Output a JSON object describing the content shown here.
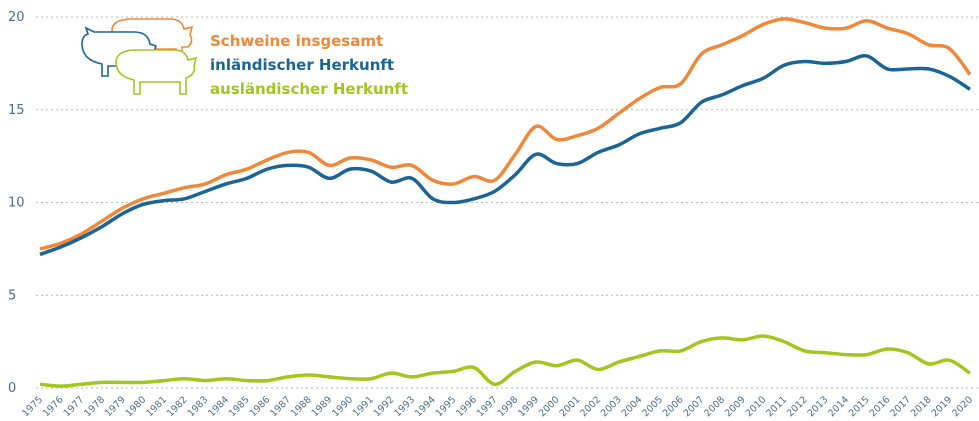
{
  "chart_data": {
    "type": "line",
    "categories": [
      "1975",
      "1976",
      "1977",
      "1978",
      "1979",
      "1980",
      "1981",
      "1982",
      "1983",
      "1984",
      "1985",
      "1986",
      "1987",
      "1988",
      "1989",
      "1990",
      "1991",
      "1992",
      "1993",
      "1994",
      "1995",
      "1996",
      "1997",
      "1998",
      "1999",
      "2000",
      "2001",
      "2002",
      "2003",
      "2004",
      "2005",
      "2006",
      "2007",
      "2008",
      "2009",
      "2010",
      "2011",
      "2012",
      "2013",
      "2014",
      "2015",
      "2016",
      "2017",
      "2018",
      "2019",
      "2020"
    ],
    "series": [
      {
        "name": "Schweine insgesamt",
        "color": "#f0883a",
        "values": [
          7.5,
          7.8,
          8.3,
          9.0,
          9.7,
          10.2,
          10.5,
          10.8,
          11.0,
          11.5,
          11.8,
          12.3,
          12.7,
          12.7,
          12.0,
          12.4,
          12.3,
          11.9,
          12.0,
          11.2,
          11.0,
          11.4,
          11.2,
          12.6,
          14.1,
          13.4,
          13.6,
          14.0,
          14.8,
          15.6,
          16.2,
          16.4,
          18.0,
          18.5,
          19.0,
          19.6,
          19.9,
          19.7,
          19.4,
          19.4,
          19.8,
          19.4,
          19.1,
          18.5,
          18.3,
          16.9
        ]
      },
      {
        "name": "inländischer Herkunft",
        "color": "#1a6496",
        "values": [
          7.2,
          7.6,
          8.1,
          8.7,
          9.4,
          9.9,
          10.1,
          10.2,
          10.6,
          11.0,
          11.3,
          11.8,
          12.0,
          11.9,
          11.3,
          11.8,
          11.7,
          11.1,
          11.3,
          10.2,
          10.0,
          10.2,
          10.6,
          11.5,
          12.6,
          12.1,
          12.1,
          12.7,
          13.1,
          13.7,
          14.0,
          14.3,
          15.4,
          15.8,
          16.3,
          16.7,
          17.4,
          17.6,
          17.5,
          17.6,
          17.9,
          17.2,
          17.2,
          17.2,
          16.8,
          16.1
        ]
      },
      {
        "name": "ausländischer Herkunft",
        "color": "#a3c520",
        "values": [
          0.2,
          0.1,
          0.2,
          0.3,
          0.3,
          0.3,
          0.4,
          0.5,
          0.4,
          0.5,
          0.4,
          0.4,
          0.6,
          0.7,
          0.6,
          0.5,
          0.5,
          0.8,
          0.6,
          0.8,
          0.9,
          1.1,
          0.2,
          0.9,
          1.4,
          1.2,
          1.5,
          1.0,
          1.4,
          1.7,
          2.0,
          2.0,
          2.5,
          2.7,
          2.6,
          2.8,
          2.5,
          2.0,
          1.9,
          1.8,
          1.8,
          2.1,
          1.9,
          1.3,
          1.5,
          0.8
        ]
      }
    ],
    "ylim": [
      0,
      20
    ],
    "yticks": [
      0,
      5,
      10,
      15,
      20
    ],
    "grid": true
  }
}
